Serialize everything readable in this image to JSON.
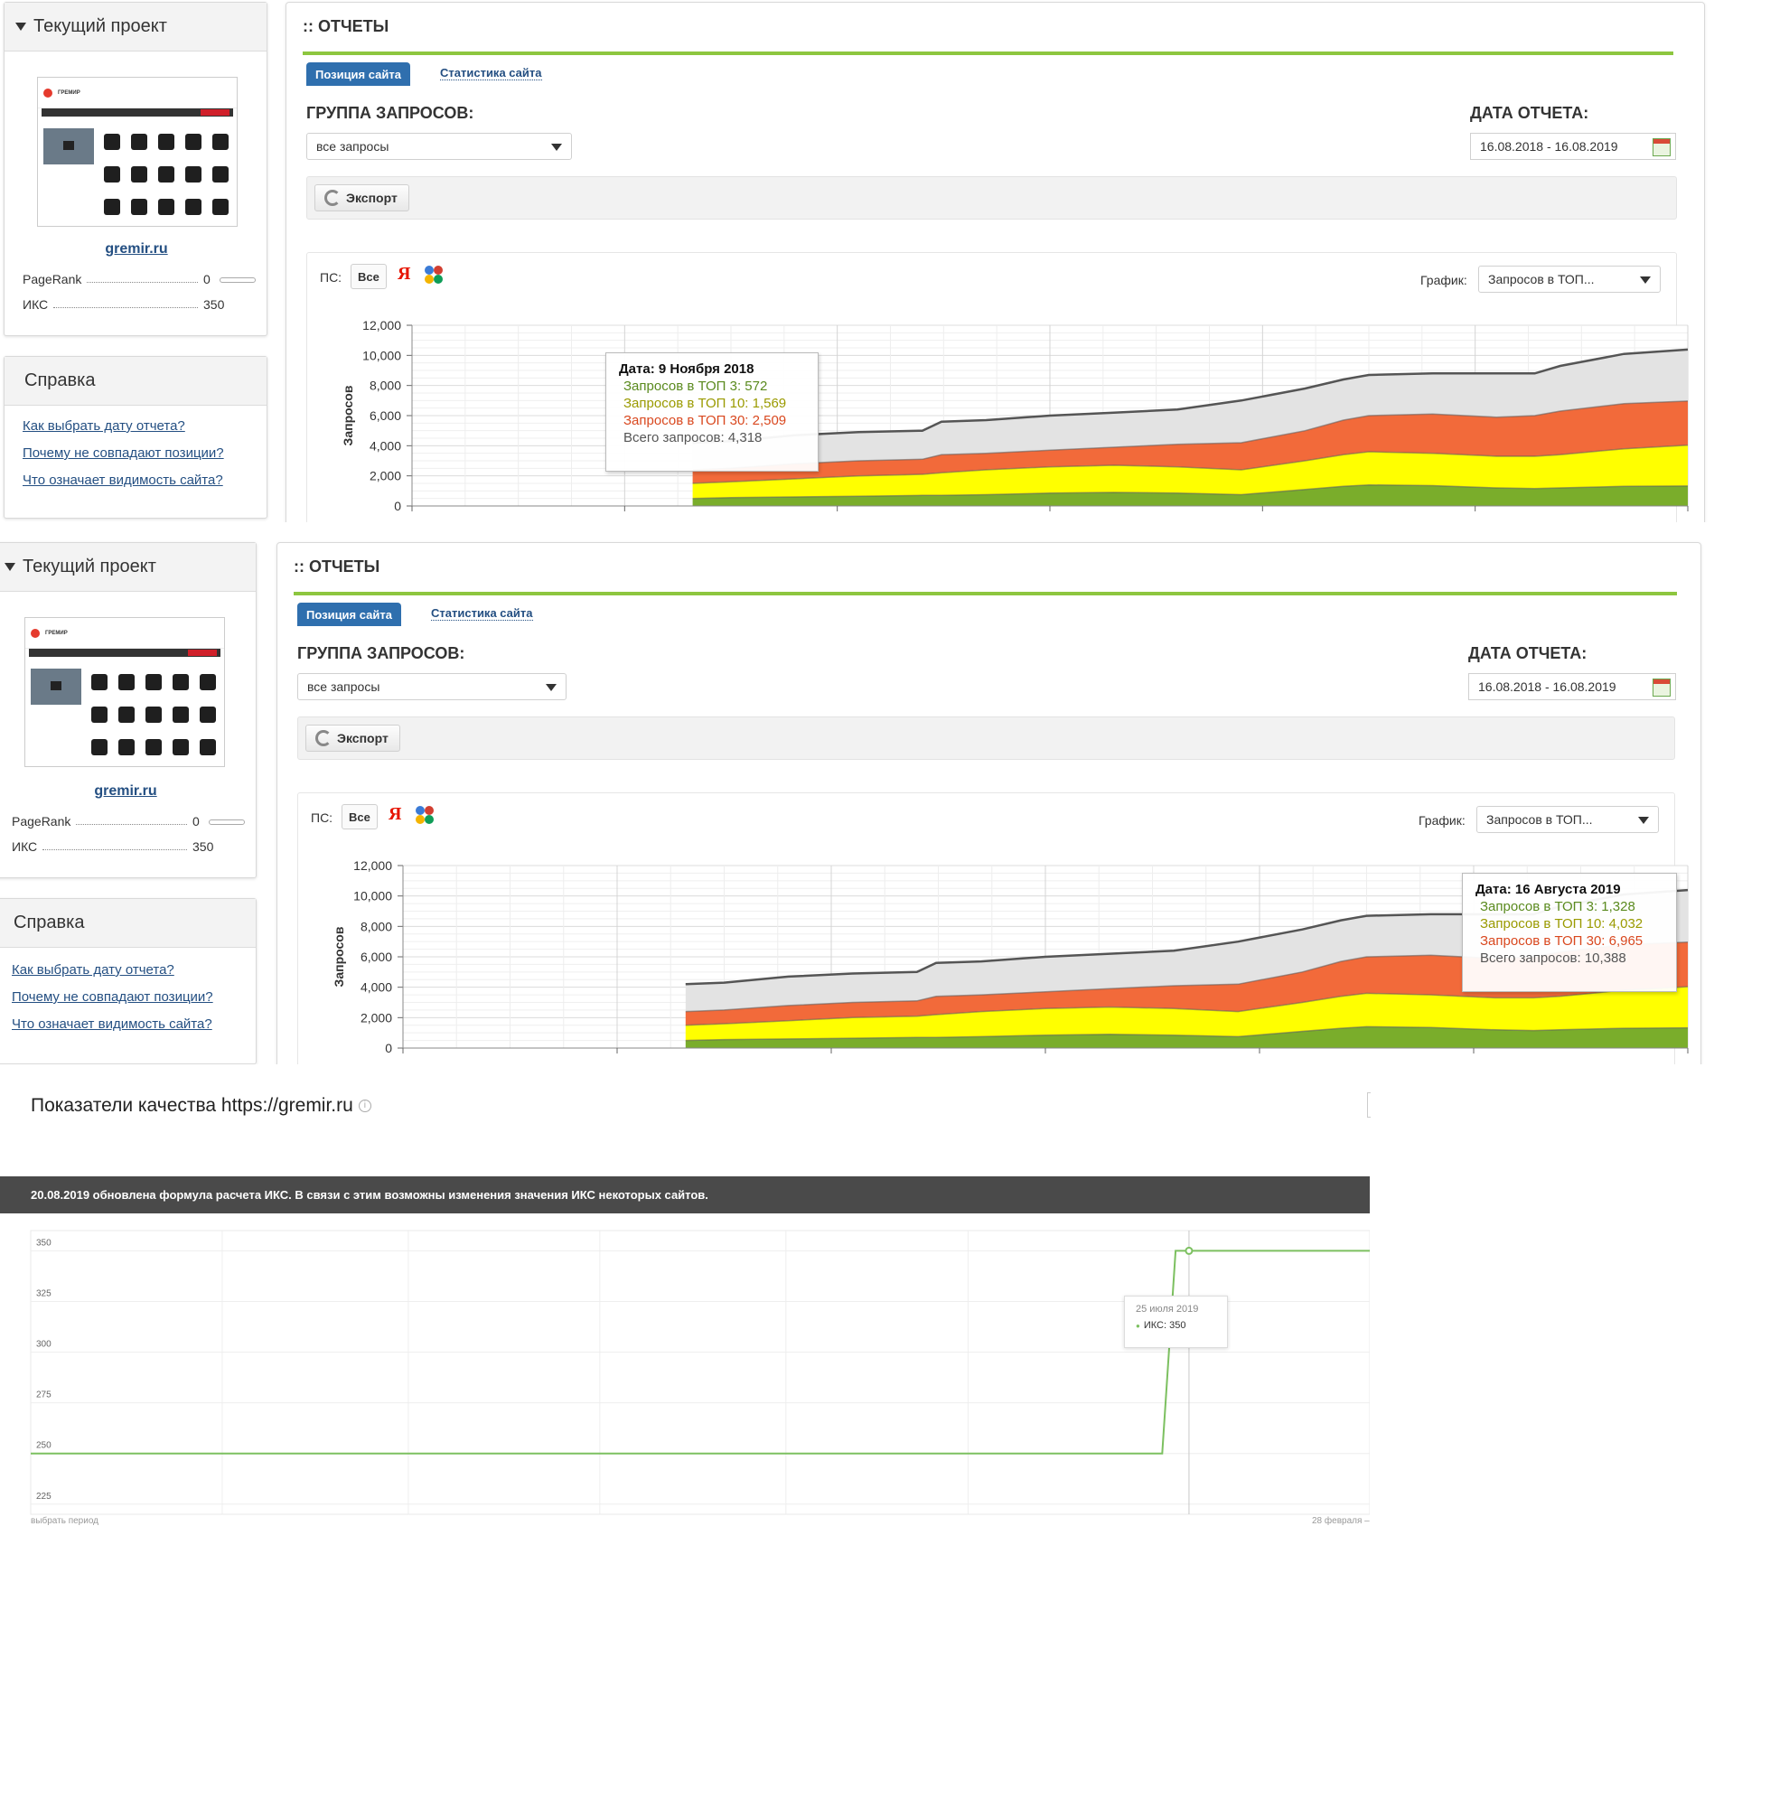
{
  "sidebar": {
    "project_header": "Текущий проект",
    "site_name": "gremir.ru",
    "thumbnail_logo": "ГРЕМИР",
    "pagerank_label": "PageRank",
    "pagerank_value": "0",
    "iks_label": "ИКС",
    "iks_value": "350",
    "help_header": "Справка",
    "help_links": [
      "Как выбрать дату отчета?",
      "Почему не совпадают позиции?",
      "Что означает видимость сайта?"
    ]
  },
  "report": {
    "title": ":: ОТЧЕТЫ",
    "tab_active": "Позиция сайта",
    "tab_other": "Статистика сайта",
    "group_label": "ГРУППА ЗАПРОСОВ:",
    "group_value": "все запросы",
    "date_label": "ДАТА ОТЧЕТА:",
    "date_value": "16.08.2018 - 16.08.2019",
    "export_label": "Экспорт",
    "ps_label": "ПС:",
    "ps_all": "Все",
    "ya_letter": "Я",
    "graph_label": "График:",
    "graph_value": "Запросов в ТОП...",
    "accent_color": "#8dc63f",
    "tab_color": "#2f6fae"
  },
  "tooltips": [
    {
      "date": "Дата: 9 Ноября 2018",
      "top3": "Запросов в ТОП 3: 572",
      "top10": "Запросов в ТОП 10: 1,569",
      "top30": "Запросов в ТОП 30: 2,509",
      "total": "Всего запросов: 4,318"
    },
    {
      "date": "Дата: 16 Августа 2019",
      "top3": "Запросов в ТОП 3: 1,328",
      "top10": "Запросов в ТОП 10: 4,032",
      "top30": "Запросов в ТОП 30: 6,965",
      "total": "Всего запросов: 10,388"
    }
  ],
  "chart_data": [
    {
      "type": "area",
      "ylabel": "Запросов",
      "ylim": [
        0,
        12000
      ],
      "y_ticks": [
        "0",
        "2,000",
        "4,000",
        "6,000",
        "8,000",
        "10,000",
        "12,000"
      ],
      "x": [
        0.22,
        0.25,
        0.3,
        0.35,
        0.4,
        0.415,
        0.45,
        0.5,
        0.55,
        0.6,
        0.65,
        0.7,
        0.73,
        0.75,
        0.8,
        0.85,
        0.88,
        0.9,
        0.95,
        1.0
      ],
      "series": [
        {
          "name": "Запросов в ТОП 3",
          "color": "#7aad2b",
          "values": [
            500,
            560,
            600,
            650,
            700,
            700,
            750,
            850,
            900,
            850,
            750,
            1100,
            1300,
            1400,
            1350,
            1200,
            1150,
            1200,
            1300,
            1328
          ]
        },
        {
          "name": "Запросов в ТОП 10",
          "color": "#ffff00",
          "values": [
            1500,
            1600,
            1800,
            2000,
            2100,
            2200,
            2400,
            2600,
            2700,
            2600,
            2400,
            3000,
            3400,
            3600,
            3500,
            3300,
            3300,
            3400,
            3800,
            4032
          ]
        },
        {
          "name": "Запросов в ТОП 30",
          "color": "#f26a3a",
          "values": [
            2400,
            2500,
            2800,
            3000,
            3100,
            3400,
            3500,
            3700,
            3900,
            4100,
            4200,
            5000,
            5700,
            6000,
            6100,
            5900,
            6000,
            6300,
            6800,
            6965
          ]
        },
        {
          "name": "Всего запросов",
          "color": "#e3e3e3",
          "values": [
            4200,
            4300,
            4700,
            4900,
            5000,
            5600,
            5700,
            6000,
            6200,
            6400,
            7000,
            7800,
            8400,
            8700,
            8800,
            8800,
            8800,
            9300,
            10100,
            10388
          ]
        }
      ]
    },
    {
      "type": "line",
      "y_ticks": [
        "225",
        "250",
        "275",
        "300",
        "325",
        "350"
      ],
      "ylim": [
        220,
        360
      ],
      "series": [
        {
          "name": "ИКС",
          "color": "#7cc060",
          "values": [
            250,
            250,
            350,
            350
          ]
        }
      ],
      "x": [
        0.0,
        0.845,
        0.855,
        1.0
      ],
      "tooltip_date": "25 июля 2019",
      "tooltip_value": "ИКС: 350",
      "footer_left": "выбрать период",
      "footer_right": "28 февраля –"
    }
  ],
  "iks": {
    "title": "Показатели качества https://gremir.ru",
    "info_glyph": "i",
    "notice": "20.08.2019 обновлена формула расчета ИКС. В связи с этим возможны изменения значения ИКС некоторых сайтов."
  }
}
